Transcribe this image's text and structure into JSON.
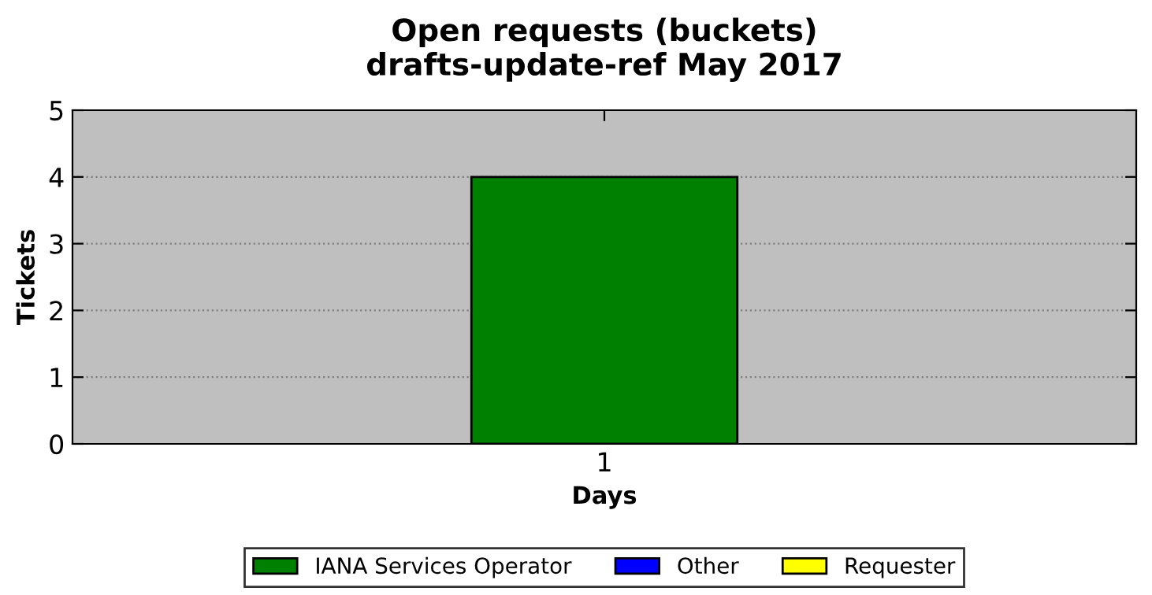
{
  "chart_data": {
    "type": "bar",
    "title": "Open requests (buckets)\ndrafts-update-ref May 2017",
    "xlabel": "Days",
    "ylabel": "Tickets",
    "categories": [
      "1"
    ],
    "series": [
      {
        "name": "IANA Services Operator",
        "color": "#008000",
        "values": [
          4
        ]
      },
      {
        "name": "Other",
        "color": "#0000ff",
        "values": [
          0
        ]
      },
      {
        "name": "Requester",
        "color": "#ffff00",
        "values": [
          0
        ]
      }
    ],
    "ylim": [
      0,
      5
    ],
    "yticks": [
      0,
      1,
      2,
      3,
      4,
      5
    ],
    "grid": "y",
    "legend": "bottom"
  }
}
